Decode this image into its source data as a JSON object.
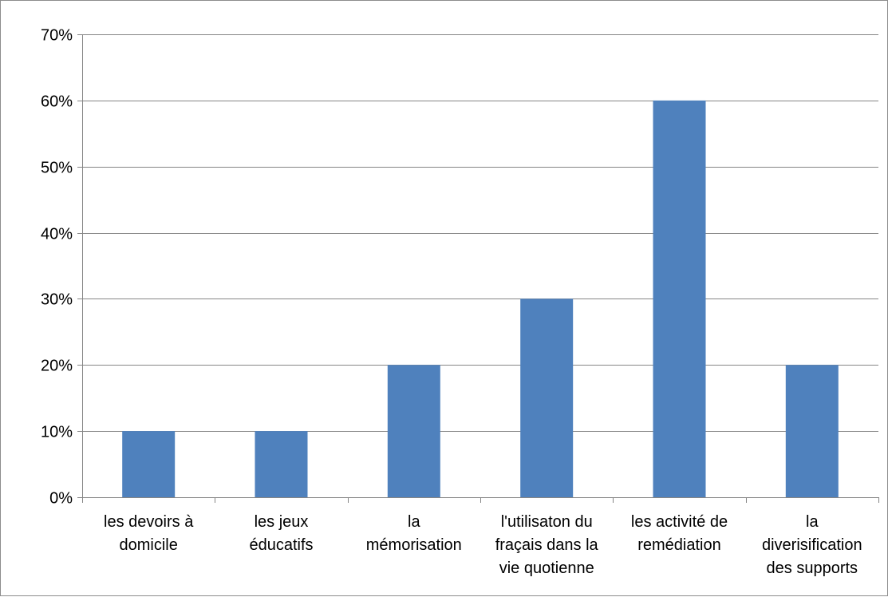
{
  "colors": {
    "bar": "#4f81bd",
    "gridline": "#868686",
    "axis": "#868686"
  },
  "chart_data": {
    "type": "bar",
    "categories": [
      [
        "les devoirs à",
        "domicile"
      ],
      [
        "les jeux",
        "éducatifs"
      ],
      [
        "la",
        "mémorisation"
      ],
      [
        "l'utilisaton du",
        "fraçais dans la",
        "vie quotienne"
      ],
      [
        "les activité de",
        "remédiation"
      ],
      [
        "la",
        "diverisification",
        "des supports"
      ]
    ],
    "series": [
      {
        "values": [
          0.1,
          0.1,
          0.2,
          0.3,
          0.6,
          0.2
        ]
      }
    ],
    "ylim": [
      0,
      0.7
    ],
    "yticks": [
      0,
      0.1,
      0.2,
      0.3,
      0.4,
      0.5,
      0.6,
      0.7
    ],
    "ytick_labels": [
      "0%",
      "10%",
      "20%",
      "30%",
      "40%",
      "50%",
      "60%",
      "70%"
    ],
    "grid": true,
    "legend": "none",
    "title": "",
    "xlabel": "",
    "ylabel": ""
  }
}
